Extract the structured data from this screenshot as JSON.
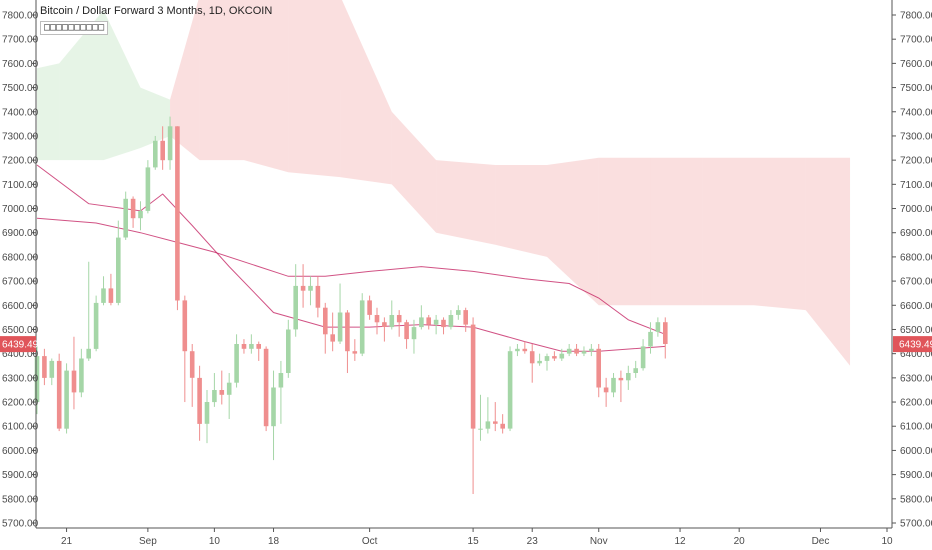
{
  "header": {
    "title": "Bitcoin / Dollar Forward 3 Months, 1D, OKCOIN",
    "indicator_label": "□□□□□□□□□□"
  },
  "price_badges": {
    "left": "6439.49",
    "right": "6439.49"
  },
  "colors": {
    "up": "#a5d6a7",
    "down": "#ef8e8e",
    "badge": "#e0555a",
    "ma_line": "#c2185b",
    "cloud_red": "#ef9a9a",
    "cloud_green": "#a5d6a7",
    "axis_line": "#555555"
  },
  "chart_data": {
    "type": "candlestick",
    "title": "Bitcoin / Dollar Forward 3 Months, 1D, OKCOIN",
    "y_axis": {
      "ylim": [
        5660,
        7880
      ],
      "ticks": [
        5700,
        5800,
        5900,
        6000,
        6100,
        6200,
        6300,
        6400,
        6500,
        6600,
        6700,
        6800,
        6900,
        7000,
        7100,
        7200,
        7300,
        7400,
        7500,
        7600,
        7700,
        7800
      ],
      "tick_labels": [
        "5700.00",
        "5800.00",
        "5900.00",
        "6000.00",
        "6100.00",
        "6200.00",
        "6300.00",
        "6400.00",
        "6500.00",
        "6600.00",
        "6700.00",
        "6800.00",
        "6900.00",
        "7000.00",
        "7100.00",
        "7200.00",
        "7300.00",
        "7400.00",
        "7500.00",
        "7600.00",
        "7700.00",
        "7800.00"
      ],
      "positions": [
        "left",
        "right"
      ]
    },
    "x_axis": {
      "range": [
        "2018-08-17",
        "2018-12-10"
      ],
      "ticks": [
        {
          "date": "2018-08-21",
          "label": "21"
        },
        {
          "date": "2018-09-01",
          "label": "Sep"
        },
        {
          "date": "2018-09-10",
          "label": "10"
        },
        {
          "date": "2018-09-18",
          "label": "18"
        },
        {
          "date": "2018-10-01",
          "label": "Oct"
        },
        {
          "date": "2018-10-15",
          "label": "15"
        },
        {
          "date": "2018-10-23",
          "label": "23"
        },
        {
          "date": "2018-11-01",
          "label": "Nov"
        },
        {
          "date": "2018-11-12",
          "label": "12"
        },
        {
          "date": "2018-11-20",
          "label": "20"
        },
        {
          "date": "2018-12-01",
          "label": "Dec"
        },
        {
          "date": "2018-12-10",
          "label": "10"
        }
      ]
    },
    "candles": [
      {
        "date": "2018-08-17",
        "o": 6200,
        "h": 6430,
        "l": 6150,
        "c": 6390
      },
      {
        "date": "2018-08-18",
        "o": 6390,
        "h": 6420,
        "l": 6270,
        "c": 6300
      },
      {
        "date": "2018-08-19",
        "o": 6300,
        "h": 6380,
        "l": 6270,
        "c": 6370
      },
      {
        "date": "2018-08-20",
        "o": 6370,
        "h": 6400,
        "l": 6080,
        "c": 6090
      },
      {
        "date": "2018-08-21",
        "o": 6090,
        "h": 6360,
        "l": 6070,
        "c": 6330
      },
      {
        "date": "2018-08-22",
        "o": 6330,
        "h": 6470,
        "l": 6170,
        "c": 6240
      },
      {
        "date": "2018-08-23",
        "o": 6240,
        "h": 6420,
        "l": 6220,
        "c": 6380
      },
      {
        "date": "2018-08-24",
        "o": 6380,
        "h": 6780,
        "l": 6370,
        "c": 6420
      },
      {
        "date": "2018-08-25",
        "o": 6420,
        "h": 6640,
        "l": 6410,
        "c": 6610
      },
      {
        "date": "2018-08-26",
        "o": 6610,
        "h": 6720,
        "l": 6600,
        "c": 6670
      },
      {
        "date": "2018-08-27",
        "o": 6670,
        "h": 6730,
        "l": 6600,
        "c": 6610
      },
      {
        "date": "2018-08-28",
        "o": 6610,
        "h": 6950,
        "l": 6600,
        "c": 6880
      },
      {
        "date": "2018-08-29",
        "o": 6880,
        "h": 7070,
        "l": 6870,
        "c": 7040
      },
      {
        "date": "2018-08-30",
        "o": 7040,
        "h": 7050,
        "l": 6920,
        "c": 6960
      },
      {
        "date": "2018-08-31",
        "o": 6960,
        "h": 7030,
        "l": 6910,
        "c": 6990
      },
      {
        "date": "2018-09-01",
        "o": 6990,
        "h": 7200,
        "l": 6980,
        "c": 7170
      },
      {
        "date": "2018-09-02",
        "o": 7170,
        "h": 7300,
        "l": 7160,
        "c": 7280
      },
      {
        "date": "2018-09-03",
        "o": 7280,
        "h": 7340,
        "l": 7160,
        "c": 7200
      },
      {
        "date": "2018-09-04",
        "o": 7200,
        "h": 7380,
        "l": 7160,
        "c": 7340
      },
      {
        "date": "2018-09-05",
        "o": 7340,
        "h": 7340,
        "l": 6580,
        "c": 6620
      },
      {
        "date": "2018-09-06",
        "o": 6620,
        "h": 6640,
        "l": 6200,
        "c": 6410
      },
      {
        "date": "2018-09-07",
        "o": 6410,
        "h": 6440,
        "l": 6180,
        "c": 6300
      },
      {
        "date": "2018-09-08",
        "o": 6300,
        "h": 6350,
        "l": 6040,
        "c": 6110
      },
      {
        "date": "2018-09-09",
        "o": 6110,
        "h": 6250,
        "l": 6030,
        "c": 6200
      },
      {
        "date": "2018-09-10",
        "o": 6200,
        "h": 6320,
        "l": 6180,
        "c": 6250
      },
      {
        "date": "2018-09-11",
        "o": 6250,
        "h": 6330,
        "l": 6190,
        "c": 6230
      },
      {
        "date": "2018-09-12",
        "o": 6230,
        "h": 6320,
        "l": 6130,
        "c": 6280
      },
      {
        "date": "2018-09-13",
        "o": 6280,
        "h": 6480,
        "l": 6260,
        "c": 6440
      },
      {
        "date": "2018-09-14",
        "o": 6440,
        "h": 6460,
        "l": 6400,
        "c": 6420
      },
      {
        "date": "2018-09-15",
        "o": 6420,
        "h": 6480,
        "l": 6400,
        "c": 6440
      },
      {
        "date": "2018-09-16",
        "o": 6440,
        "h": 6450,
        "l": 6370,
        "c": 6420
      },
      {
        "date": "2018-09-17",
        "o": 6420,
        "h": 6430,
        "l": 6080,
        "c": 6100
      },
      {
        "date": "2018-09-18",
        "o": 6100,
        "h": 6330,
        "l": 5960,
        "c": 6260
      },
      {
        "date": "2018-09-19",
        "o": 6260,
        "h": 6370,
        "l": 6110,
        "c": 6320
      },
      {
        "date": "2018-09-20",
        "o": 6320,
        "h": 6540,
        "l": 6300,
        "c": 6500
      },
      {
        "date": "2018-09-21",
        "o": 6500,
        "h": 6770,
        "l": 6470,
        "c": 6680
      },
      {
        "date": "2018-09-22",
        "o": 6680,
        "h": 6770,
        "l": 6590,
        "c": 6660
      },
      {
        "date": "2018-09-23",
        "o": 6660,
        "h": 6720,
        "l": 6600,
        "c": 6680
      },
      {
        "date": "2018-09-24",
        "o": 6680,
        "h": 6720,
        "l": 6550,
        "c": 6590
      },
      {
        "date": "2018-09-25",
        "o": 6590,
        "h": 6610,
        "l": 6400,
        "c": 6480
      },
      {
        "date": "2018-09-26",
        "o": 6480,
        "h": 6570,
        "l": 6410,
        "c": 6450
      },
      {
        "date": "2018-09-27",
        "o": 6450,
        "h": 6690,
        "l": 6440,
        "c": 6570
      },
      {
        "date": "2018-09-28",
        "o": 6570,
        "h": 6580,
        "l": 6320,
        "c": 6410
      },
      {
        "date": "2018-09-29",
        "o": 6410,
        "h": 6460,
        "l": 6370,
        "c": 6400
      },
      {
        "date": "2018-09-30",
        "o": 6400,
        "h": 6650,
        "l": 6390,
        "c": 6620
      },
      {
        "date": "2018-10-01",
        "o": 6620,
        "h": 6640,
        "l": 6540,
        "c": 6560
      },
      {
        "date": "2018-10-02",
        "o": 6560,
        "h": 6590,
        "l": 6480,
        "c": 6530
      },
      {
        "date": "2018-10-03",
        "o": 6530,
        "h": 6550,
        "l": 6450,
        "c": 6510
      },
      {
        "date": "2018-10-04",
        "o": 6510,
        "h": 6620,
        "l": 6500,
        "c": 6560
      },
      {
        "date": "2018-10-05",
        "o": 6560,
        "h": 6580,
        "l": 6470,
        "c": 6530
      },
      {
        "date": "2018-10-06",
        "o": 6530,
        "h": 6540,
        "l": 6420,
        "c": 6460
      },
      {
        "date": "2018-10-07",
        "o": 6460,
        "h": 6540,
        "l": 6400,
        "c": 6510
      },
      {
        "date": "2018-10-08",
        "o": 6510,
        "h": 6600,
        "l": 6500,
        "c": 6550
      },
      {
        "date": "2018-10-09",
        "o": 6550,
        "h": 6560,
        "l": 6500,
        "c": 6520
      },
      {
        "date": "2018-10-10",
        "o": 6520,
        "h": 6560,
        "l": 6480,
        "c": 6540
      },
      {
        "date": "2018-10-11",
        "o": 6540,
        "h": 6550,
        "l": 6480,
        "c": 6510
      },
      {
        "date": "2018-10-12",
        "o": 6510,
        "h": 6580,
        "l": 6500,
        "c": 6560
      },
      {
        "date": "2018-10-13",
        "o": 6560,
        "h": 6600,
        "l": 6540,
        "c": 6580
      },
      {
        "date": "2018-10-14",
        "o": 6580,
        "h": 6590,
        "l": 6490,
        "c": 6520
      },
      {
        "date": "2018-10-15",
        "o": 6520,
        "h": 6550,
        "l": 5820,
        "c": 6090
      },
      {
        "date": "2018-10-16",
        "o": 6090,
        "h": 6230,
        "l": 6040,
        "c": 6090
      },
      {
        "date": "2018-10-17",
        "o": 6090,
        "h": 6220,
        "l": 6070,
        "c": 6120
      },
      {
        "date": "2018-10-18",
        "o": 6120,
        "h": 6200,
        "l": 6080,
        "c": 6110
      },
      {
        "date": "2018-10-19",
        "o": 6110,
        "h": 6150,
        "l": 6070,
        "c": 6090
      },
      {
        "date": "2018-10-20",
        "o": 6090,
        "h": 6430,
        "l": 6080,
        "c": 6410
      },
      {
        "date": "2018-10-21",
        "o": 6410,
        "h": 6440,
        "l": 6390,
        "c": 6420
      },
      {
        "date": "2018-10-22",
        "o": 6420,
        "h": 6450,
        "l": 6400,
        "c": 6410
      },
      {
        "date": "2018-10-23",
        "o": 6410,
        "h": 6440,
        "l": 6280,
        "c": 6360
      },
      {
        "date": "2018-10-24",
        "o": 6360,
        "h": 6400,
        "l": 6350,
        "c": 6370
      },
      {
        "date": "2018-10-25",
        "o": 6370,
        "h": 6400,
        "l": 6330,
        "c": 6390
      },
      {
        "date": "2018-10-26",
        "o": 6390,
        "h": 6410,
        "l": 6370,
        "c": 6380
      },
      {
        "date": "2018-10-27",
        "o": 6380,
        "h": 6420,
        "l": 6370,
        "c": 6400
      },
      {
        "date": "2018-10-28",
        "o": 6400,
        "h": 6440,
        "l": 6390,
        "c": 6420
      },
      {
        "date": "2018-10-29",
        "o": 6420,
        "h": 6440,
        "l": 6390,
        "c": 6400
      },
      {
        "date": "2018-10-30",
        "o": 6400,
        "h": 6430,
        "l": 6390,
        "c": 6410
      },
      {
        "date": "2018-10-31",
        "o": 6410,
        "h": 6440,
        "l": 6390,
        "c": 6420
      },
      {
        "date": "2018-11-01",
        "o": 6420,
        "h": 6440,
        "l": 6220,
        "c": 6260
      },
      {
        "date": "2018-11-02",
        "o": 6260,
        "h": 6300,
        "l": 6180,
        "c": 6240
      },
      {
        "date": "2018-11-03",
        "o": 6240,
        "h": 6320,
        "l": 6220,
        "c": 6300
      },
      {
        "date": "2018-11-04",
        "o": 6300,
        "h": 6330,
        "l": 6200,
        "c": 6290
      },
      {
        "date": "2018-11-05",
        "o": 6290,
        "h": 6350,
        "l": 6250,
        "c": 6320
      },
      {
        "date": "2018-11-06",
        "o": 6320,
        "h": 6370,
        "l": 6300,
        "c": 6340
      },
      {
        "date": "2018-11-07",
        "o": 6340,
        "h": 6460,
        "l": 6330,
        "c": 6430
      },
      {
        "date": "2018-11-08",
        "o": 6430,
        "h": 6530,
        "l": 6400,
        "c": 6490
      },
      {
        "date": "2018-11-09",
        "o": 6490,
        "h": 6550,
        "l": 6470,
        "c": 6530
      },
      {
        "date": "2018-11-10",
        "o": 6530,
        "h": 6550,
        "l": 6380,
        "c": 6440
      }
    ],
    "moving_average": {
      "color": "#c2185b",
      "points": [
        {
          "date": "2018-08-17",
          "v": 6960
        },
        {
          "date": "2018-08-25",
          "v": 6940
        },
        {
          "date": "2018-08-31",
          "v": 6900
        },
        {
          "date": "2018-09-05",
          "v": 6860
        },
        {
          "date": "2018-09-10",
          "v": 6820
        },
        {
          "date": "2018-09-15",
          "v": 6770
        },
        {
          "date": "2018-09-20",
          "v": 6720
        },
        {
          "date": "2018-09-25",
          "v": 6720
        },
        {
          "date": "2018-10-01",
          "v": 6740
        },
        {
          "date": "2018-10-08",
          "v": 6760
        },
        {
          "date": "2018-10-15",
          "v": 6740
        },
        {
          "date": "2018-10-22",
          "v": 6710
        },
        {
          "date": "2018-10-28",
          "v": 6690
        },
        {
          "date": "2018-11-01",
          "v": 6630
        },
        {
          "date": "2018-11-05",
          "v": 6540
        },
        {
          "date": "2018-11-10",
          "v": 6480
        }
      ]
    },
    "baseline": {
      "color": "#c2185b",
      "points": [
        {
          "date": "2018-08-17",
          "v": 7180
        },
        {
          "date": "2018-08-24",
          "v": 7020
        },
        {
          "date": "2018-08-31",
          "v": 6990
        },
        {
          "date": "2018-09-03",
          "v": 7060
        },
        {
          "date": "2018-09-07",
          "v": 6930
        },
        {
          "date": "2018-09-12",
          "v": 6760
        },
        {
          "date": "2018-09-18",
          "v": 6570
        },
        {
          "date": "2018-09-25",
          "v": 6510
        },
        {
          "date": "2018-10-01",
          "v": 6510
        },
        {
          "date": "2018-10-08",
          "v": 6520
        },
        {
          "date": "2018-10-15",
          "v": 6510
        },
        {
          "date": "2018-10-22",
          "v": 6450
        },
        {
          "date": "2018-10-27",
          "v": 6410
        },
        {
          "date": "2018-11-01",
          "v": 6410
        },
        {
          "date": "2018-11-10",
          "v": 6430
        }
      ]
    },
    "cloud": [
      {
        "date": "2018-08-17",
        "top": 7580,
        "bottom": 7200,
        "color": "green"
      },
      {
        "date": "2018-08-20",
        "top": 7600,
        "bottom": 7200,
        "color": "green"
      },
      {
        "date": "2018-08-26",
        "top": 7820,
        "bottom": 7200,
        "color": "green"
      },
      {
        "date": "2018-08-31",
        "top": 7500,
        "bottom": 7250,
        "color": "green"
      },
      {
        "date": "2018-09-04",
        "top": 7450,
        "bottom": 7300,
        "color": "red"
      },
      {
        "date": "2018-09-08",
        "top": 7880,
        "bottom": 7200,
        "color": "red"
      },
      {
        "date": "2018-09-14",
        "top": 7880,
        "bottom": 7200,
        "color": "red"
      },
      {
        "date": "2018-09-20",
        "top": 7880,
        "bottom": 7150,
        "color": "red"
      },
      {
        "date": "2018-09-27",
        "top": 7880,
        "bottom": 7130,
        "color": "red"
      },
      {
        "date": "2018-10-04",
        "top": 7400,
        "bottom": 7100,
        "color": "red"
      },
      {
        "date": "2018-10-10",
        "top": 7200,
        "bottom": 6900,
        "color": "red"
      },
      {
        "date": "2018-10-18",
        "top": 7180,
        "bottom": 6850,
        "color": "red"
      },
      {
        "date": "2018-10-25",
        "top": 7180,
        "bottom": 6800,
        "color": "red"
      },
      {
        "date": "2018-11-01",
        "top": 7210,
        "bottom": 6600,
        "color": "red"
      },
      {
        "date": "2018-11-08",
        "top": 7210,
        "bottom": 6600,
        "color": "red"
      },
      {
        "date": "2018-11-15",
        "top": 7210,
        "bottom": 6600,
        "color": "red"
      },
      {
        "date": "2018-11-22",
        "top": 7210,
        "bottom": 6600,
        "color": "red"
      },
      {
        "date": "2018-11-29",
        "top": 7210,
        "bottom": 6580,
        "color": "red"
      },
      {
        "date": "2018-12-05",
        "top": 7210,
        "bottom": 6350,
        "color": "red"
      }
    ],
    "grid": false,
    "legend": "top-left"
  }
}
